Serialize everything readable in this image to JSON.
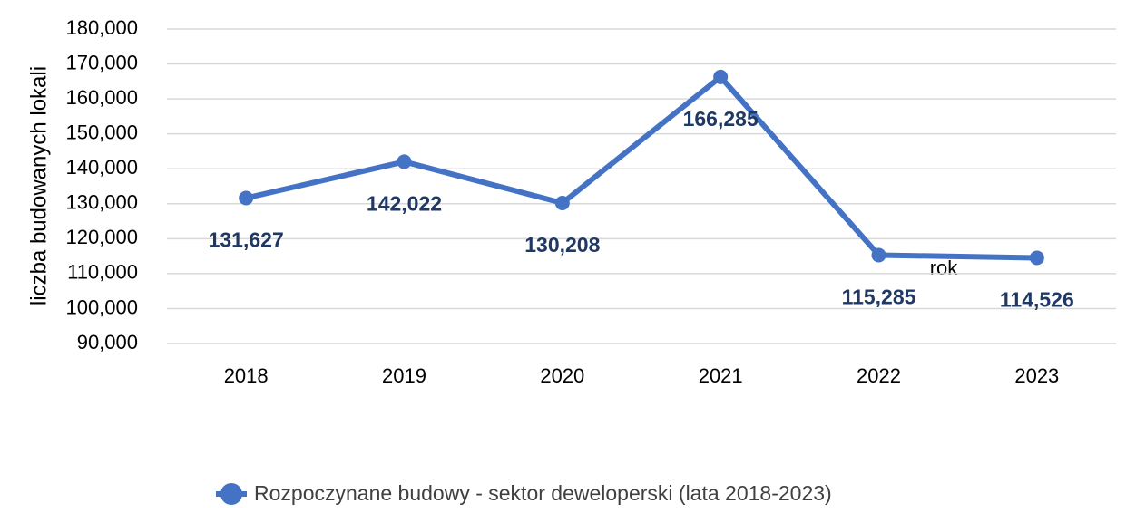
{
  "chart_data": {
    "type": "line",
    "y_label": "liczba budowanych lokali",
    "x_label": "rok",
    "categories": [
      "2018",
      "2019",
      "2020",
      "2021",
      "2022",
      "2023"
    ],
    "series": [
      {
        "name": "Rozpoczynane budowy - sektor deweloperski (lata 2018-2023)",
        "color": "#4472c4",
        "values": [
          131627,
          142022,
          130208,
          166285,
          115285,
          114526
        ],
        "value_labels": [
          "131,627",
          "142,022",
          "130,208",
          "166,285",
          "115,285",
          "114,526"
        ]
      }
    ],
    "ylim": [
      90000,
      180000
    ],
    "yticks": [
      {
        "value": 90000,
        "label": "90,000"
      },
      {
        "value": 100000,
        "label": "100,000"
      },
      {
        "value": 110000,
        "label": "110,000"
      },
      {
        "value": 120000,
        "label": "120,000"
      },
      {
        "value": 130000,
        "label": "130,000"
      },
      {
        "value": 140000,
        "label": "140,000"
      },
      {
        "value": 150000,
        "label": "150,000"
      },
      {
        "value": 160000,
        "label": "160,000"
      },
      {
        "value": 170000,
        "label": "170,000"
      },
      {
        "value": 180000,
        "label": "180,000"
      }
    ],
    "grid": true
  }
}
